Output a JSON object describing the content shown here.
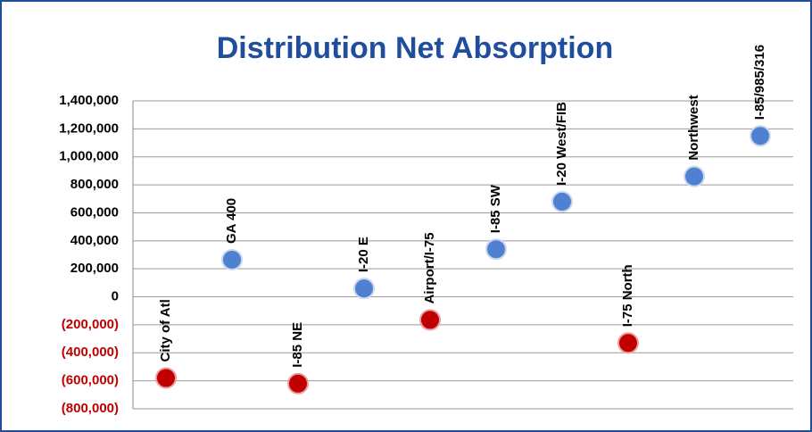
{
  "chart_data": {
    "type": "dot",
    "title": "Distribution Net Absorption",
    "categories": [
      "City of Atl",
      "GA 400",
      "I-85 NE",
      "I-20 E",
      "Airport/I-75",
      "I-85 SW",
      "I-20 West/FIB",
      "I-75 North",
      "Northwest",
      "I-85/985/316"
    ],
    "values": [
      -580000,
      265000,
      -620000,
      60000,
      -165000,
      340000,
      680000,
      -330000,
      860000,
      1150000
    ],
    "colors": {
      "positive": "#4f81d0",
      "negative": "#c00000"
    },
    "ylim": [
      -800000,
      1400000
    ],
    "yticks": [
      {
        "value": -800000,
        "label": "(800,000)"
      },
      {
        "value": -600000,
        "label": "(600,000)"
      },
      {
        "value": -400000,
        "label": "(400,000)"
      },
      {
        "value": -200000,
        "label": "(200,000)"
      },
      0,
      {
        "value": 200000,
        "label": "200,000"
      },
      {
        "value": 400000,
        "label": "400,000"
      },
      {
        "value": 600000,
        "label": "600,000"
      },
      {
        "value": 800000,
        "label": "800,000"
      },
      {
        "value": 1000000,
        "label": "1,000,000"
      },
      {
        "value": 1200000,
        "label": "1,200,000"
      },
      {
        "value": 1400000,
        "label": "1,400,000"
      }
    ],
    "grid": true
  }
}
